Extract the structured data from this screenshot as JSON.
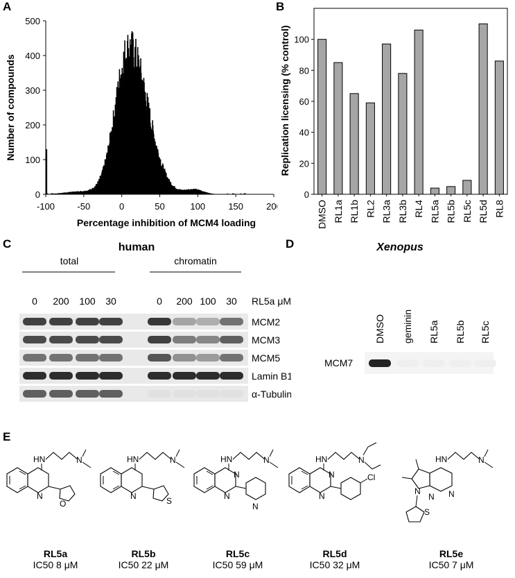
{
  "panels": {
    "A": "A",
    "B": "B",
    "C": "C",
    "D": "D",
    "E": "E"
  },
  "chart_data": [
    {
      "type": "bar",
      "panel": "A",
      "title": "",
      "xlabel": "Percentage inhibition of MCM4 loading",
      "ylabel": "Number of compounds",
      "xlim": [
        -100,
        200
      ],
      "ylim": [
        0,
        500
      ],
      "xticks": [
        "-100",
        "-50",
        "0",
        "50",
        "100",
        "150",
        "200"
      ],
      "yticks": [
        "0",
        "100",
        "200",
        "300",
        "400",
        "500"
      ],
      "distribution": "histogram of screened compounds, peak ~470 near 10% inhibition, spike ~130 at -100",
      "peak_value": 470,
      "peak_x": 10,
      "spike_at_minus_100": 130
    },
    {
      "type": "bar",
      "panel": "B",
      "title": "",
      "xlabel": "",
      "ylabel": "Replication licensing (% control)",
      "ylim": [
        0,
        120
      ],
      "yticks": [
        "0",
        "20",
        "40",
        "60",
        "80",
        "100"
      ],
      "categories": [
        "DMSO",
        "RL1a",
        "RL1b",
        "RL2",
        "RL3a",
        "RL3b",
        "RL4",
        "RL5a",
        "RL5b",
        "RL5c",
        "RL5d",
        "RL8"
      ],
      "values": [
        100,
        85,
        65,
        59,
        97,
        78,
        106,
        4,
        5,
        9,
        110,
        86
      ],
      "bar_color": "#a6a6a6"
    }
  ],
  "panelC": {
    "title": "human",
    "group_total": "total",
    "group_chromatin": "chromatin",
    "treatment_label": "RL5a μM",
    "conc_total": [
      "0",
      "200",
      "100",
      "30"
    ],
    "conc_chromatin": [
      "0",
      "200",
      "100",
      "30"
    ],
    "blots": [
      {
        "label": "MCM2",
        "total": [
          0.85,
          0.85,
          0.85,
          0.85
        ],
        "chromatin": [
          0.9,
          0.35,
          0.3,
          0.6
        ]
      },
      {
        "label": "MCM3",
        "total": [
          0.8,
          0.8,
          0.8,
          0.8
        ],
        "chromatin": [
          0.85,
          0.55,
          0.5,
          0.7
        ]
      },
      {
        "label": "MCM5",
        "total": [
          0.6,
          0.6,
          0.6,
          0.6
        ],
        "chromatin": [
          0.75,
          0.45,
          0.4,
          0.6
        ]
      },
      {
        "label": "Lamin B1",
        "total": [
          0.95,
          0.95,
          0.95,
          0.95
        ],
        "chromatin": [
          0.95,
          0.95,
          0.95,
          0.95
        ]
      },
      {
        "label": "α-Tubulin",
        "total": [
          0.7,
          0.7,
          0.7,
          0.7
        ],
        "chromatin": [
          0.05,
          0.05,
          0.05,
          0.05
        ]
      }
    ]
  },
  "panelD": {
    "title": "Xenopus",
    "lanes": [
      "DMSO",
      "geminin",
      "RL5a",
      "RL5b",
      "RL5c"
    ],
    "blot_label": "MCM7",
    "intensity": [
      0.9,
      0.02,
      0.02,
      0.02,
      0.02
    ]
  },
  "panelE": {
    "compounds": [
      {
        "name": "RL5a",
        "ic50": "IC50 8 μM"
      },
      {
        "name": "RL5b",
        "ic50": "IC50 22 μM"
      },
      {
        "name": "RL5c",
        "ic50": "IC50 59 μM"
      },
      {
        "name": "RL5d",
        "ic50": "IC50 32 μM"
      },
      {
        "name": "RL5e",
        "ic50": "IC50 7 μM"
      }
    ],
    "atoms": {
      "HN": "HN",
      "N": "N",
      "O": "O",
      "S": "S",
      "Cl": "Cl"
    }
  }
}
